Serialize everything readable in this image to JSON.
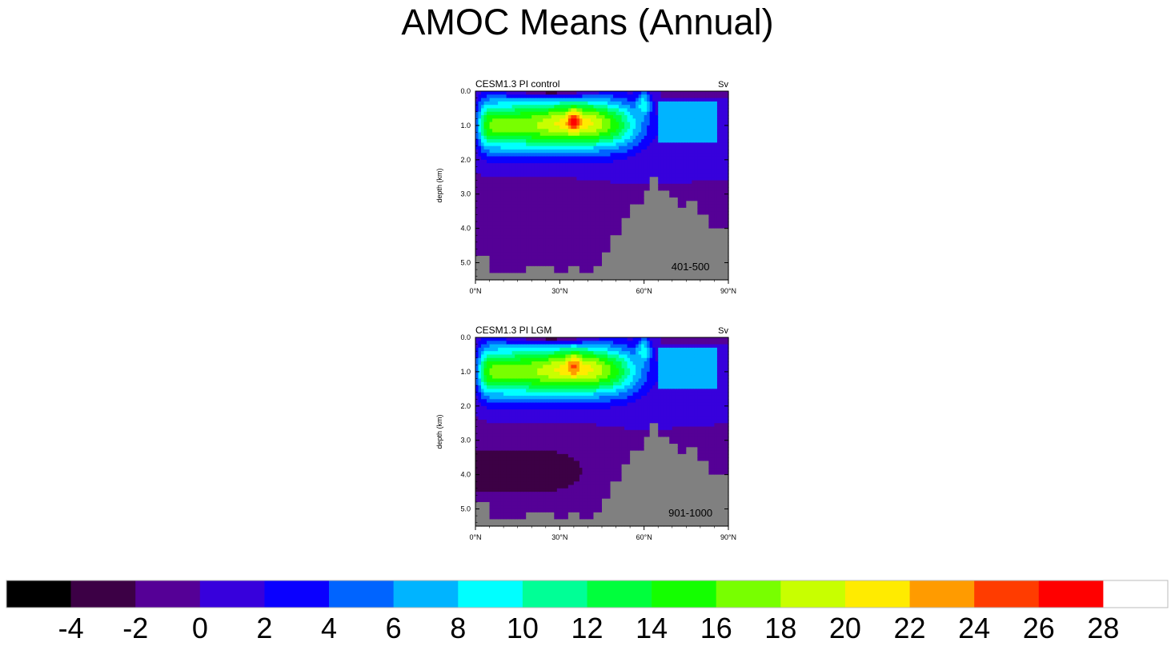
{
  "title": "AMOC Means (Annual)",
  "colors": {
    "land": "#808080",
    "palette": [
      "#000000",
      "#3c0045",
      "#550096",
      "#3700dc",
      "#0a00ff",
      "#0064ff",
      "#00b4ff",
      "#00ffff",
      "#00ff96",
      "#00ff3c",
      "#14ff00",
      "#78ff00",
      "#c8ff00",
      "#ffeb00",
      "#ff9b00",
      "#ff3c00",
      "#ff0000",
      "#ffffff"
    ]
  },
  "colorbar": {
    "labels": [
      "-4",
      "-2",
      "0",
      "2",
      "4",
      "6",
      "8",
      "10",
      "12",
      "14",
      "16",
      "18",
      "20",
      "22",
      "24",
      "26",
      "28"
    ]
  },
  "chart_data": [
    {
      "type": "heatmap",
      "panel_title": "CESM1.3 PI control",
      "units": "Sv",
      "period": "401-500",
      "xlabel": "",
      "ylabel": "depth (km)",
      "x_ticks": [
        "0°N",
        "30°N",
        "60°N",
        "90°N"
      ],
      "y_ticks": [
        "0.0",
        "1.0",
        "2.0",
        "3.0",
        "4.0",
        "5.0"
      ],
      "xlim": [
        0,
        90
      ],
      "ylim": [
        5.5,
        0.0
      ],
      "features": {
        "max_sv": 27,
        "max_lat": 35,
        "max_depth_km": 0.85,
        "deep_cell_min_sv": -2
      }
    },
    {
      "type": "heatmap",
      "panel_title": "CESM1.3 PI LGM",
      "units": "Sv",
      "period": "901-1000",
      "xlabel": "",
      "ylabel": "depth (km)",
      "x_ticks": [
        "0°N",
        "30°N",
        "60°N",
        "90°N"
      ],
      "y_ticks": [
        "0.0",
        "1.0",
        "2.0",
        "3.0",
        "4.0",
        "5.0"
      ],
      "xlim": [
        0,
        90
      ],
      "ylim": [
        5.5,
        0.0
      ],
      "features": {
        "max_sv": 25,
        "max_lat": 35,
        "max_depth_km": 0.75,
        "deep_cell_min_sv": -3
      }
    }
  ]
}
